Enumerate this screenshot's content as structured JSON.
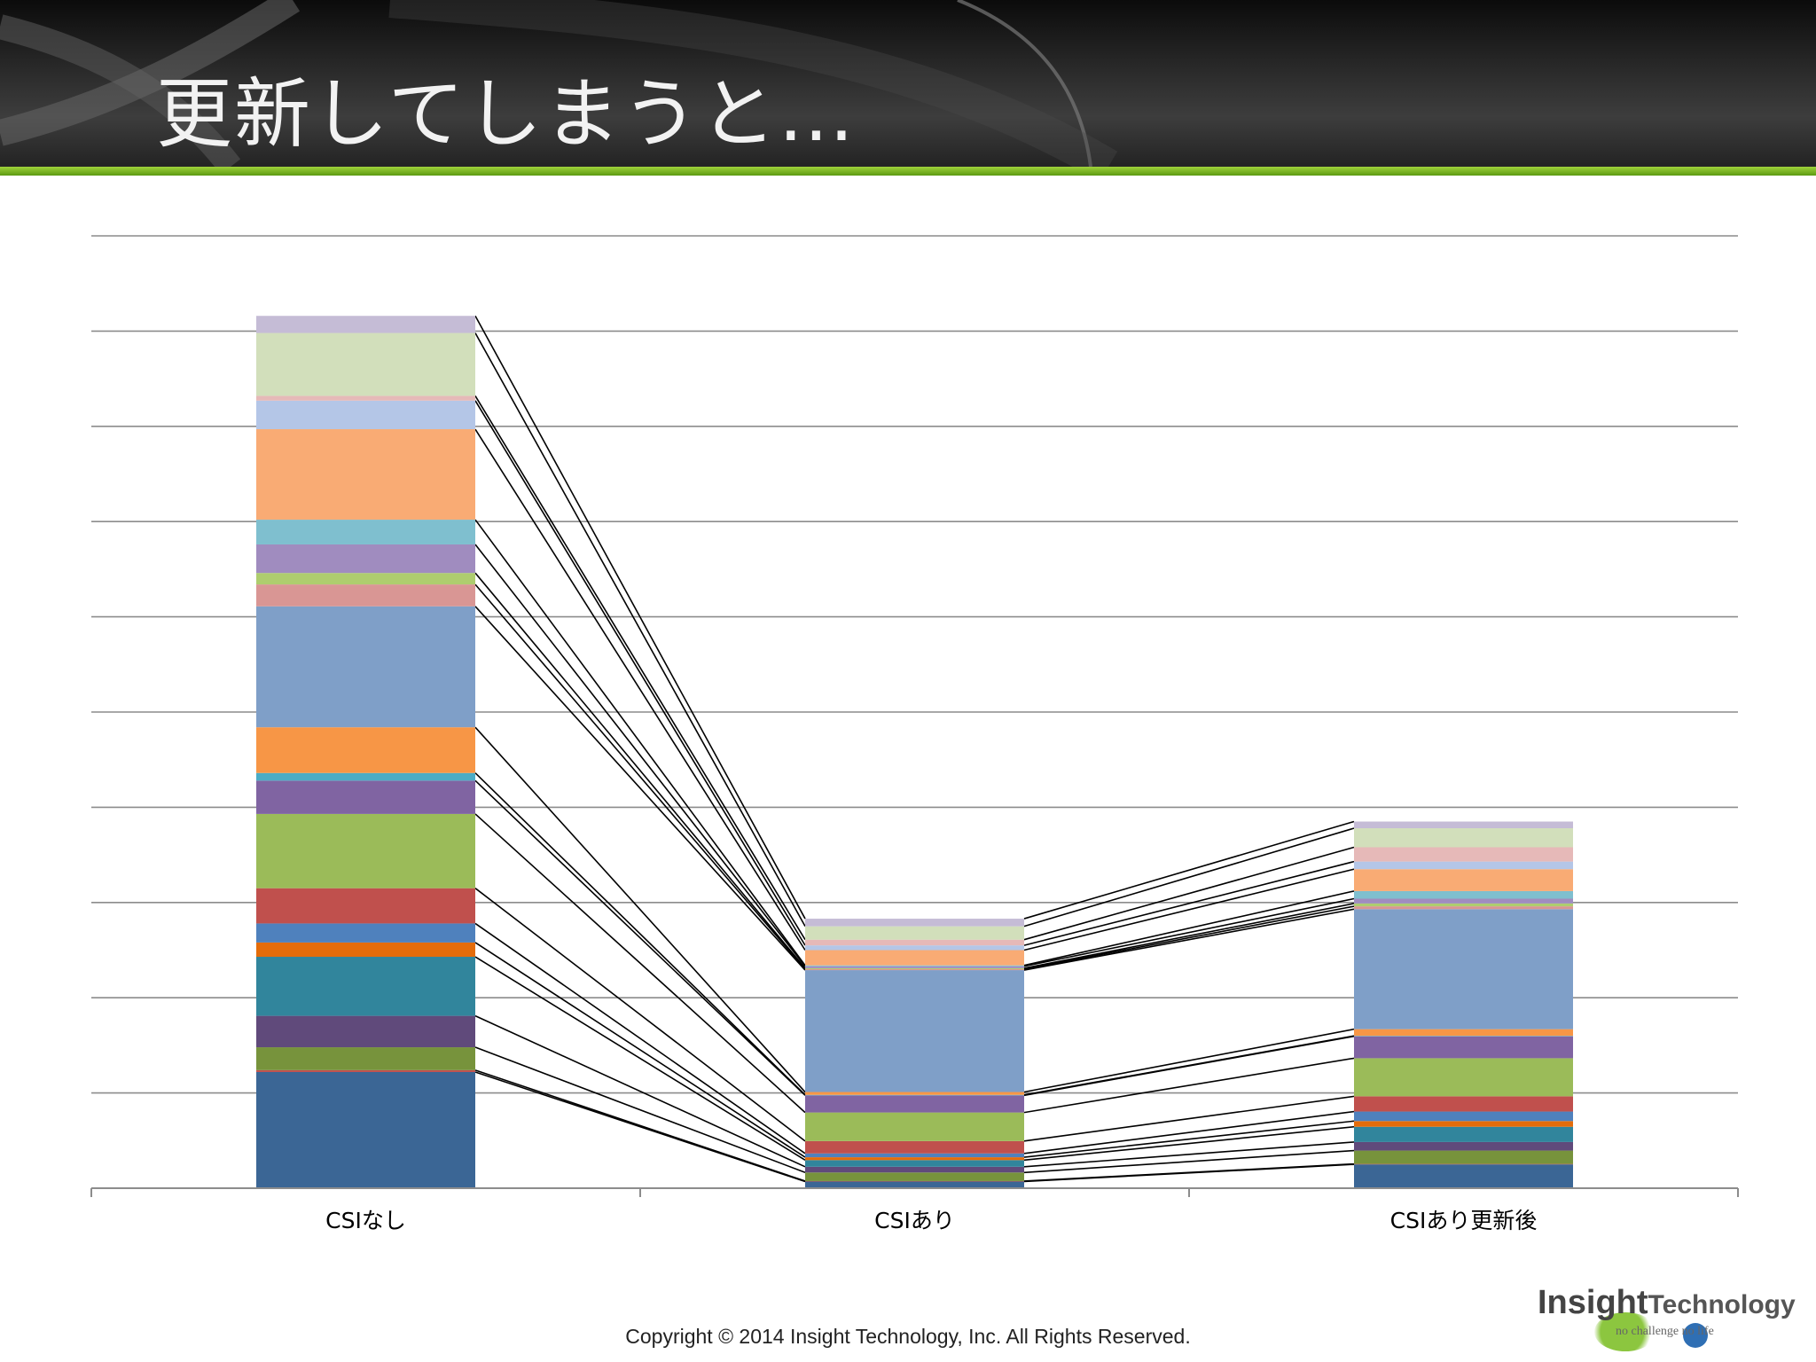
{
  "slide": {
    "title": "更新してしまうと…",
    "copyright": "Copyright © 2014 Insight Technology, Inc. All Rights Reserved.",
    "logo": {
      "main": "Insight",
      "sub": "Technology",
      "tagline": "no challenge no life"
    },
    "colors": {
      "header": "#2a2a2a",
      "accent": "#7ab828"
    }
  },
  "chart_data": {
    "type": "bar",
    "stacked": true,
    "series_lines": true,
    "categories": [
      "CSIなし",
      "CSIあり",
      "CSIあり更新後"
    ],
    "ylim": [
      0,
      10
    ],
    "yticks": [
      0,
      1,
      2,
      3,
      4,
      5,
      6,
      7,
      8,
      9,
      10
    ],
    "ytick_labels_shown": false,
    "grid": true,
    "legend": "none",
    "series": [
      {
        "color": "#3b6695",
        "values": [
          1.22,
          0.07,
          0.25
        ]
      },
      {
        "color": "#c0504d",
        "values": [
          0.02,
          0.005,
          0.005
        ]
      },
      {
        "color": "#77933c",
        "values": [
          0.24,
          0.09,
          0.14
        ]
      },
      {
        "color": "#604a7b",
        "values": [
          0.33,
          0.06,
          0.09
        ]
      },
      {
        "color": "#31859c",
        "values": [
          0.62,
          0.07,
          0.16
        ]
      },
      {
        "color": "#e46c0a",
        "values": [
          0.15,
          0.03,
          0.06
        ]
      },
      {
        "color": "#4f81bd",
        "values": [
          0.2,
          0.04,
          0.1
        ]
      },
      {
        "color": "#c0504d",
        "values": [
          0.37,
          0.13,
          0.16
        ]
      },
      {
        "color": "#9bbb59",
        "values": [
          0.78,
          0.3,
          0.4
        ]
      },
      {
        "color": "#8064a2",
        "values": [
          0.35,
          0.18,
          0.23
        ]
      },
      {
        "color": "#4bacc6",
        "values": [
          0.08,
          0.005,
          0.005
        ]
      },
      {
        "color": "#f79646",
        "values": [
          0.48,
          0.03,
          0.07
        ]
      },
      {
        "color": "#7f9fc8",
        "values": [
          1.27,
          1.28,
          1.26
        ]
      },
      {
        "color": "#d99694",
        "values": [
          0.23,
          0.01,
          0.03
        ]
      },
      {
        "color": "#aecd6e",
        "values": [
          0.12,
          0.01,
          0.03
        ]
      },
      {
        "color": "#a08cbf",
        "values": [
          0.3,
          0.02,
          0.05
        ]
      },
      {
        "color": "#7fbfcf",
        "values": [
          0.26,
          0.01,
          0.08
        ]
      },
      {
        "color": "#f9ab74",
        "values": [
          0.95,
          0.16,
          0.23
        ]
      },
      {
        "color": "#b4c6e7",
        "values": [
          0.3,
          0.05,
          0.08
        ]
      },
      {
        "color": "#e6b9b8",
        "values": [
          0.05,
          0.06,
          0.15
        ]
      },
      {
        "color": "#d2dfbb",
        "values": [
          0.66,
          0.14,
          0.2
        ]
      },
      {
        "color": "#c5bcd6",
        "values": [
          0.18,
          0.08,
          0.07
        ]
      }
    ]
  }
}
